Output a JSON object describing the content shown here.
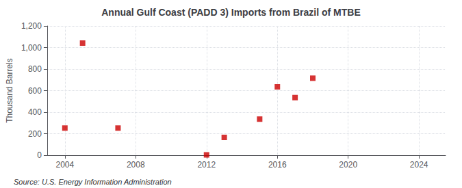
{
  "chart_data": {
    "type": "scatter",
    "title": "Annual Gulf Coast (PADD 3) Imports from Brazil of MTBE",
    "ylabel": "Thousand Barrels",
    "annotations": [
      "Source: U.S. Energy Information Administration"
    ],
    "x": [
      2004,
      2005,
      2007,
      2012,
      2013,
      2015,
      2016,
      2017,
      2018
    ],
    "values": [
      252,
      1041,
      252,
      3,
      165,
      335,
      635,
      535,
      715
    ],
    "color": "#cc0000",
    "marker": "square",
    "xlim": [
      2003,
      2025.5
    ],
    "xticks": [
      2004,
      2008,
      2012,
      2016,
      2020,
      2024
    ],
    "ylim": [
      0,
      1200
    ],
    "yticks": [
      0,
      200,
      400,
      600,
      800,
      {
        "value": 1000,
        "label": "1,000"
      },
      {
        "value": 1200,
        "label": "1,200"
      }
    ],
    "grid": true
  }
}
